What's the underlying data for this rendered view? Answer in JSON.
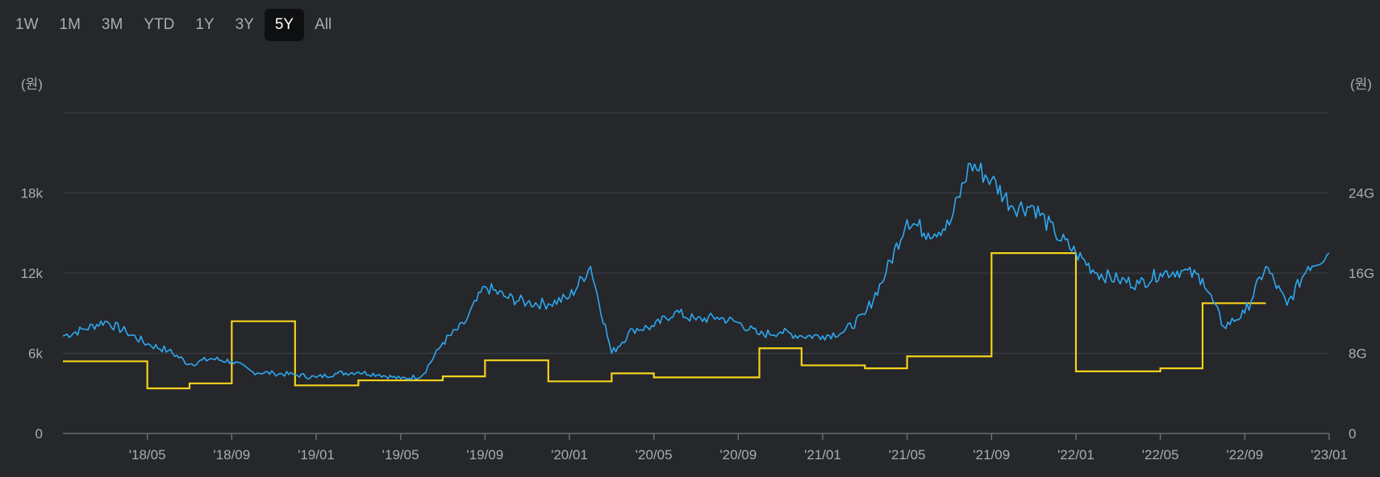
{
  "range_tabs": [
    {
      "label": "1W",
      "active": false
    },
    {
      "label": "1M",
      "active": false
    },
    {
      "label": "3M",
      "active": false
    },
    {
      "label": "YTD",
      "active": false
    },
    {
      "label": "1Y",
      "active": false
    },
    {
      "label": "3Y",
      "active": false
    },
    {
      "label": "5Y",
      "active": true
    },
    {
      "label": "All",
      "active": false
    }
  ],
  "chart_data": {
    "type": "line",
    "left_unit": "(원)",
    "right_unit": "(원)",
    "grid": true,
    "y_left": {
      "lim": [
        0,
        24000
      ],
      "ticks": [
        {
          "v": 0,
          "label": "0"
        },
        {
          "v": 6000,
          "label": "6k"
        },
        {
          "v": 12000,
          "label": "12k"
        },
        {
          "v": 18000,
          "label": "18k"
        }
      ]
    },
    "y_right": {
      "lim": [
        0,
        32000000000
      ],
      "ticks": [
        {
          "v": 0,
          "label": "0"
        },
        {
          "v": 8000000000,
          "label": "8G"
        },
        {
          "v": 16000000000,
          "label": "16G"
        },
        {
          "v": 24000000000,
          "label": "24G"
        }
      ]
    },
    "x_ticks": [
      "'18/05",
      "'18/09",
      "'19/01",
      "'19/05",
      "'19/09",
      "'20/01",
      "'20/05",
      "'20/09",
      "'21/01",
      "'21/05",
      "'21/09",
      "'22/01",
      "'22/05",
      "'22/09",
      "'23/01"
    ],
    "x_tick_dates": [
      "2018-05",
      "2018-09",
      "2019-01",
      "2019-05",
      "2019-09",
      "2020-01",
      "2020-05",
      "2020-09",
      "2021-01",
      "2021-05",
      "2021-09",
      "2022-01",
      "2022-05",
      "2022-09",
      "2023-01"
    ],
    "colors": {
      "price": "#2ea8f0",
      "volume": "#f5d21c",
      "grid": "#3a3d43",
      "axis": "#6a6d73"
    },
    "series": [
      {
        "axis": "left",
        "color": "#2ea8f0",
        "x": [
          "2018-01",
          "2018-02",
          "2018-03",
          "2018-04",
          "2018-05",
          "2018-06",
          "2018-07",
          "2018-08",
          "2018-09",
          "2018-10",
          "2018-11",
          "2018-12",
          "2019-01",
          "2019-02",
          "2019-03",
          "2019-04",
          "2019-05",
          "2019-06",
          "2019-07",
          "2019-08",
          "2019-09",
          "2019-10",
          "2019-11",
          "2019-12",
          "2020-01",
          "2020-02",
          "2020-03",
          "2020-04",
          "2020-05",
          "2020-06",
          "2020-07",
          "2020-08",
          "2020-09",
          "2020-10",
          "2020-11",
          "2020-12",
          "2021-01",
          "2021-02",
          "2021-03",
          "2021-04",
          "2021-05",
          "2021-06",
          "2021-07",
          "2021-08",
          "2021-09",
          "2021-10",
          "2021-11",
          "2021-12",
          "2022-01",
          "2022-02",
          "2022-03",
          "2022-04",
          "2022-05",
          "2022-06",
          "2022-07",
          "2022-08",
          "2022-09",
          "2022-10",
          "2022-11",
          "2022-12",
          "2023-01"
        ],
        "values": [
          7300,
          7800,
          8400,
          7600,
          6700,
          6200,
          5200,
          5600,
          5400,
          4600,
          4500,
          4400,
          4200,
          4500,
          4600,
          4400,
          4100,
          4300,
          6800,
          8200,
          11000,
          10200,
          9800,
          9700,
          10200,
          12500,
          6000,
          7800,
          8000,
          9100,
          8500,
          8700,
          8300,
          7400,
          7600,
          7300,
          7300,
          7600,
          8900,
          12000,
          16000,
          15000,
          15600,
          20200,
          19000,
          17000,
          17000,
          15000,
          13500,
          12000,
          11500,
          11200,
          12000,
          12200,
          11600,
          8000,
          9000,
          12500,
          9600,
          12500,
          13500
        ]
      },
      {
        "axis": "right",
        "color": "#f5d21c",
        "x": [
          "2018-01",
          "2018-04",
          "2018-05",
          "2018-07",
          "2018-09",
          "2018-10",
          "2018-12",
          "2019-01",
          "2019-03",
          "2019-05",
          "2019-07",
          "2019-09",
          "2019-12",
          "2020-03",
          "2020-05",
          "2020-07",
          "2020-10",
          "2020-12",
          "2021-03",
          "2021-05",
          "2021-07",
          "2021-09",
          "2021-12",
          "2022-01",
          "2022-03",
          "2022-05",
          "2022-07",
          "2022-09",
          "2022-10"
        ],
        "values": [
          7200000000,
          7200000000,
          4500000000,
          5000000000,
          11200000000,
          11200000000,
          4800000000,
          4800000000,
          5300000000,
          5300000000,
          5700000000,
          7300000000,
          5200000000,
          6000000000,
          5600000000,
          5600000000,
          8500000000,
          6800000000,
          6500000000,
          7700000000,
          7700000000,
          18000000000,
          18000000000,
          6200000000,
          6200000000,
          6500000000,
          13000000000,
          13000000000,
          13000000000
        ],
        "end": "2022-10"
      }
    ]
  }
}
